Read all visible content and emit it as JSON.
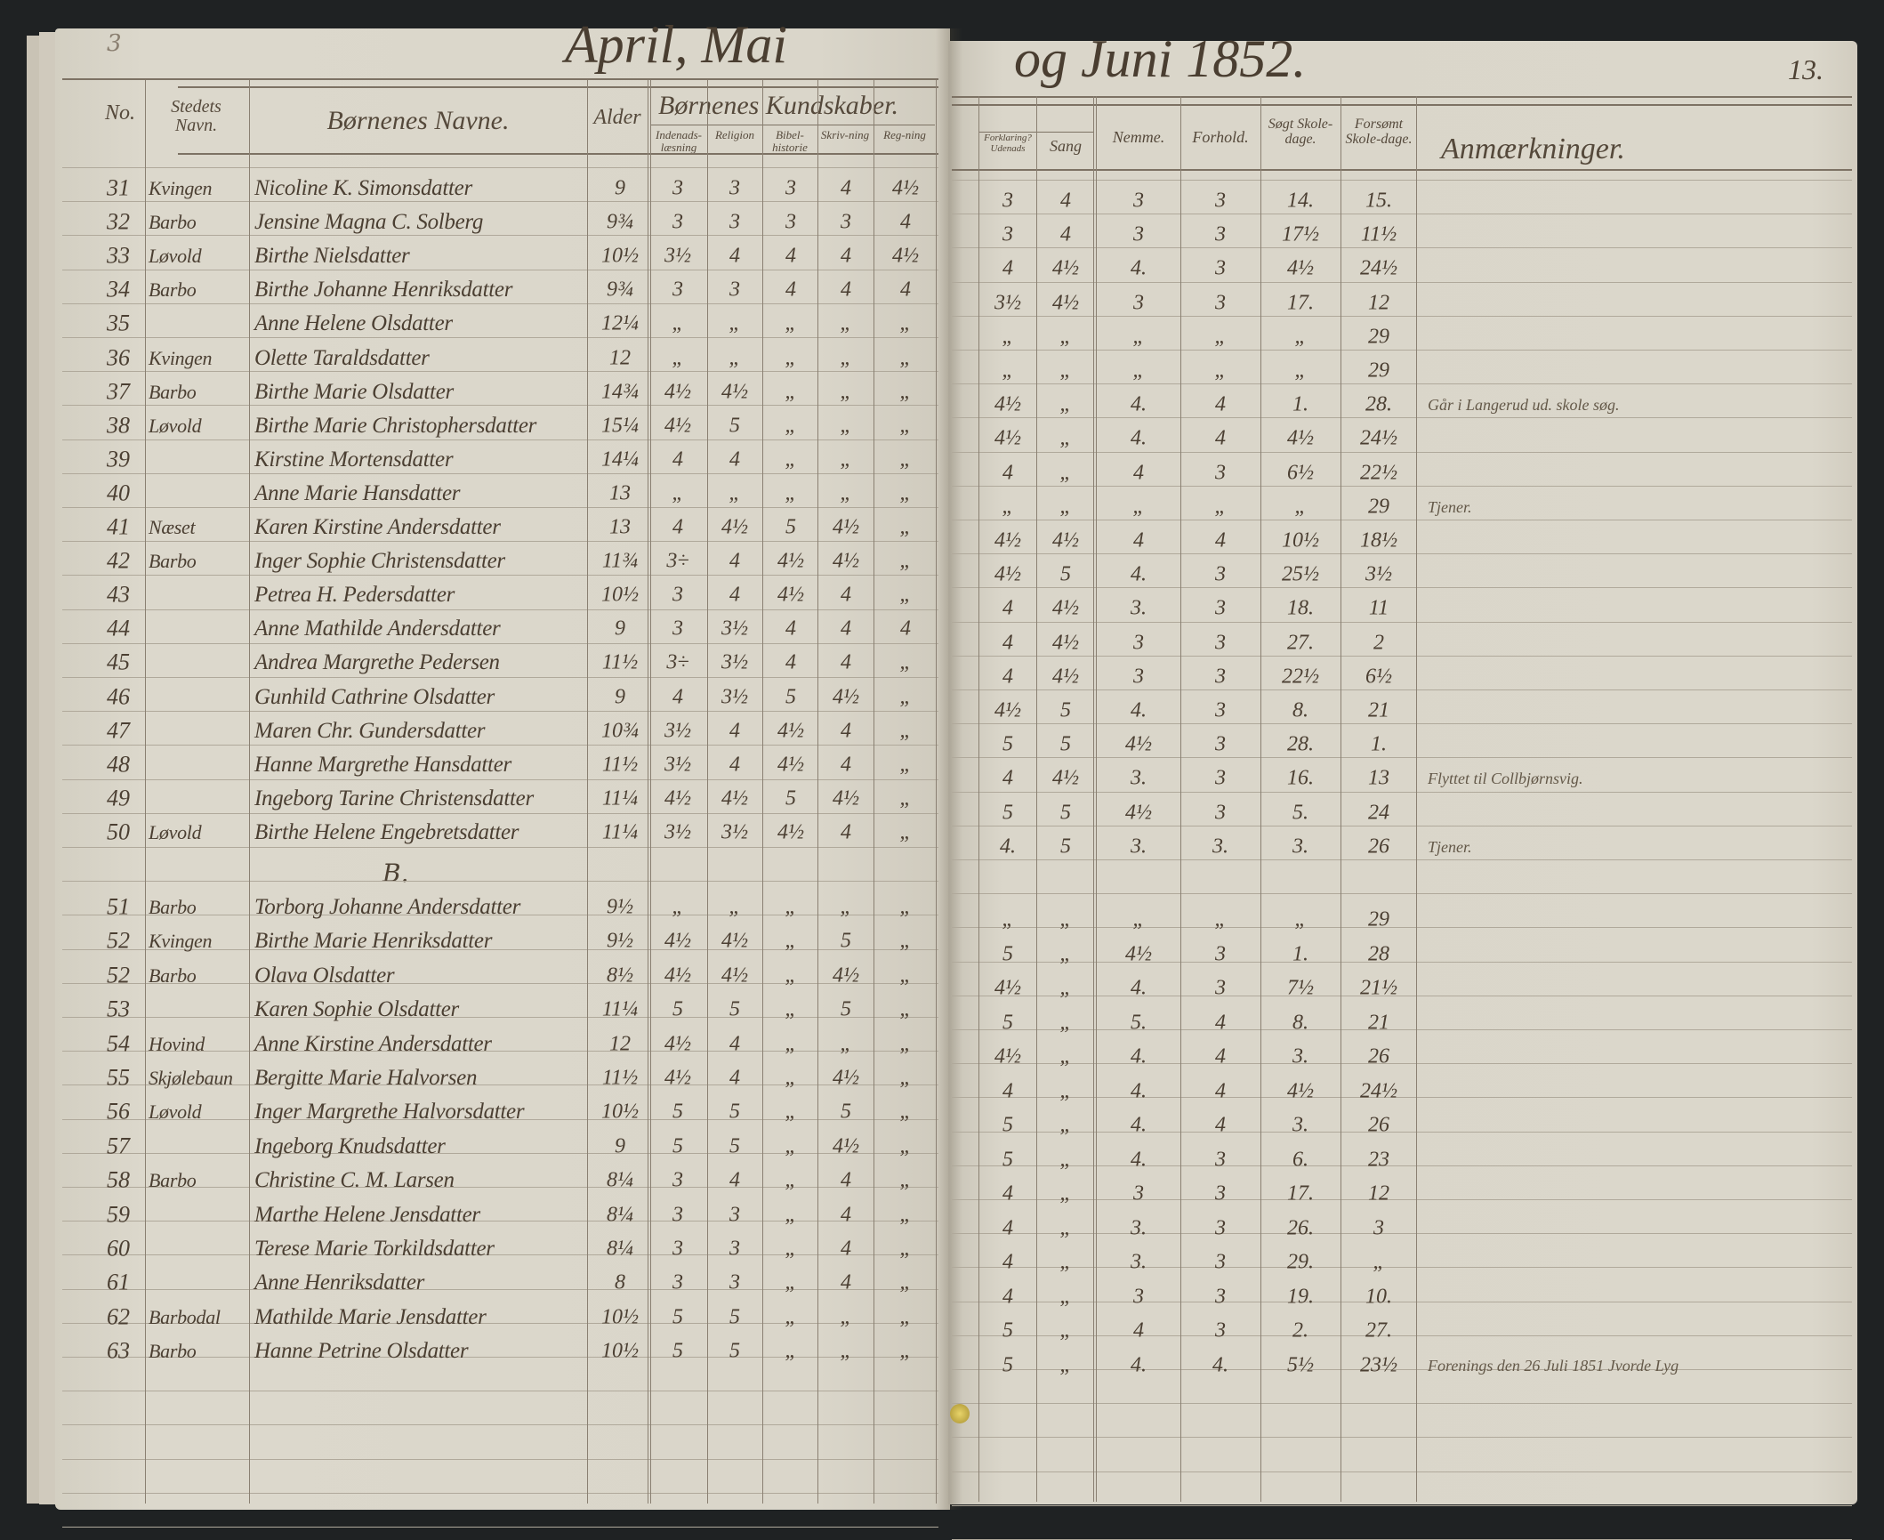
{
  "title_left": "April, Mai",
  "title_right": "og Juni 1852.",
  "page_number": "13.",
  "corner_mark": "3",
  "headers": {
    "no": "No.",
    "place": "Stedets Navn.",
    "name": "Børnenes Navne.",
    "age": "Alder",
    "knowledge": "Børnenes Kundskaber.",
    "k1": "Indenads-læsning",
    "k2": "Religion",
    "k3": "Bibel-historie",
    "k4": "Skriv-ning",
    "k5": "Reg-ning",
    "k6": "Forklaring? Udenads",
    "sang": "Sang",
    "nemme": "Nemme.",
    "forhold": "Forhold.",
    "sogt": "Søgt Skole-dage.",
    "forsomt": "Forsømt Skole-dage.",
    "remarks": "Anmærkninger."
  },
  "section_mark": "B.",
  "rows": [
    {
      "no": "31",
      "place": "Kvingen",
      "name": "Nicoline K. Simonsdatter",
      "age": "9",
      "k": [
        "3",
        "3",
        "3",
        "4",
        "4½"
      ],
      "r": [
        "3",
        "4",
        "3",
        "3",
        "14.",
        "15."
      ],
      "remark": ""
    },
    {
      "no": "32",
      "place": "Barbo",
      "name": "Jensine Magna C. Solberg",
      "age": "9¾",
      "k": [
        "3",
        "3",
        "3",
        "3",
        "4"
      ],
      "r": [
        "3",
        "4",
        "3",
        "3",
        "17½",
        "11½"
      ],
      "remark": ""
    },
    {
      "no": "33",
      "place": "Løvold",
      "name": "Birthe Nielsdatter",
      "age": "10½",
      "k": [
        "3½",
        "4",
        "4",
        "4",
        "4½"
      ],
      "r": [
        "4",
        "4½",
        "4.",
        "3",
        "4½",
        "24½"
      ],
      "remark": ""
    },
    {
      "no": "34",
      "place": "Barbo",
      "name": "Birthe Johanne Henriksdatter",
      "age": "9¾",
      "k": [
        "3",
        "3",
        "4",
        "4",
        "4"
      ],
      "r": [
        "3½",
        "4½",
        "3",
        "3",
        "17.",
        "12"
      ],
      "remark": ""
    },
    {
      "no": "35",
      "place": "",
      "name": "Anne Helene Olsdatter",
      "age": "12¼",
      "k": [
        "„",
        "„",
        "„",
        "„",
        "„"
      ],
      "r": [
        "„",
        "„",
        "„",
        "„",
        "„",
        "29"
      ],
      "remark": ""
    },
    {
      "no": "36",
      "place": "Kvingen",
      "name": "Olette Taraldsdatter",
      "age": "12",
      "k": [
        "„",
        "„",
        "„",
        "„",
        "„"
      ],
      "r": [
        "„",
        "„",
        "„",
        "„",
        "„",
        "29"
      ],
      "remark": ""
    },
    {
      "no": "37",
      "place": "Barbo",
      "name": "Birthe Marie Olsdatter",
      "age": "14¾",
      "k": [
        "4½",
        "4½",
        "„",
        "„",
        "„"
      ],
      "r": [
        "4½",
        "„",
        "4.",
        "4",
        "1.",
        "28."
      ],
      "remark": "Går i Langerud ud. skole søg."
    },
    {
      "no": "38",
      "place": "Løvold",
      "name": "Birthe Marie Christophersdatter",
      "age": "15¼",
      "k": [
        "4½",
        "5",
        "„",
        "„",
        "„"
      ],
      "r": [
        "4½",
        "„",
        "4.",
        "4",
        "4½",
        "24½"
      ],
      "remark": ""
    },
    {
      "no": "39",
      "place": "",
      "name": "Kirstine Mortensdatter",
      "age": "14¼",
      "k": [
        "4",
        "4",
        "„",
        "„",
        "„"
      ],
      "r": [
        "4",
        "„",
        "4",
        "3",
        "6½",
        "22½"
      ],
      "remark": ""
    },
    {
      "no": "40",
      "place": "",
      "name": "Anne Marie Hansdatter",
      "age": "13",
      "k": [
        "„",
        "„",
        "„",
        "„",
        "„"
      ],
      "r": [
        "„",
        "„",
        "„",
        "„",
        "„",
        "29"
      ],
      "remark": "Tjener."
    },
    {
      "no": "41",
      "place": "Næset",
      "name": "Karen Kirstine Andersdatter",
      "age": "13",
      "k": [
        "4",
        "4½",
        "5",
        "4½",
        "„"
      ],
      "r": [
        "4½",
        "4½",
        "4",
        "4",
        "10½",
        "18½"
      ],
      "remark": ""
    },
    {
      "no": "42",
      "place": "Barbo",
      "name": "Inger Sophie Christensdatter",
      "age": "11¾",
      "k": [
        "3÷",
        "4",
        "4½",
        "4½",
        "„"
      ],
      "r": [
        "4½",
        "5",
        "4.",
        "3",
        "25½",
        "3½"
      ],
      "remark": ""
    },
    {
      "no": "43",
      "place": "",
      "name": "Petrea H. Pedersdatter",
      "age": "10½",
      "k": [
        "3",
        "4",
        "4½",
        "4",
        "„"
      ],
      "r": [
        "4",
        "4½",
        "3.",
        "3",
        "18.",
        "11"
      ],
      "remark": ""
    },
    {
      "no": "44",
      "place": "",
      "name": "Anne Mathilde Andersdatter",
      "age": "9",
      "k": [
        "3",
        "3½",
        "4",
        "4",
        "4"
      ],
      "r": [
        "4",
        "4½",
        "3",
        "3",
        "27.",
        "2"
      ],
      "remark": ""
    },
    {
      "no": "45",
      "place": "",
      "name": "Andrea Margrethe Pedersen",
      "age": "11½",
      "k": [
        "3÷",
        "3½",
        "4",
        "4",
        "„"
      ],
      "r": [
        "4",
        "4½",
        "3",
        "3",
        "22½",
        "6½"
      ],
      "remark": ""
    },
    {
      "no": "46",
      "place": "",
      "name": "Gunhild Cathrine Olsdatter",
      "age": "9",
      "k": [
        "4",
        "3½",
        "5",
        "4½",
        "„"
      ],
      "r": [
        "4½",
        "5",
        "4.",
        "3",
        "8.",
        "21"
      ],
      "remark": ""
    },
    {
      "no": "47",
      "place": "",
      "name": "Maren Chr. Gundersdatter",
      "age": "10¾",
      "k": [
        "3½",
        "4",
        "4½",
        "4",
        "„"
      ],
      "r": [
        "5",
        "5",
        "4½",
        "3",
        "28.",
        "1."
      ],
      "remark": ""
    },
    {
      "no": "48",
      "place": "",
      "name": "Hanne Margrethe Hansdatter",
      "age": "11½",
      "k": [
        "3½",
        "4",
        "4½",
        "4",
        "„"
      ],
      "r": [
        "4",
        "4½",
        "3.",
        "3",
        "16.",
        "13"
      ],
      "remark": "Flyttet til Collbjørnsvig."
    },
    {
      "no": "49",
      "place": "",
      "name": "Ingeborg Tarine Christensdatter",
      "age": "11¼",
      "k": [
        "4½",
        "4½",
        "5",
        "4½",
        "„"
      ],
      "r": [
        "5",
        "5",
        "4½",
        "3",
        "5.",
        "24"
      ],
      "remark": ""
    },
    {
      "no": "50",
      "place": "Løvold",
      "name": "Birthe Helene Engebretsdatter",
      "age": "11¼",
      "k": [
        "3½",
        "3½",
        "4½",
        "4",
        "„"
      ],
      "r": [
        "4.",
        "5",
        "3.",
        "3.",
        "3.",
        "26"
      ],
      "remark": "Tjener."
    }
  ],
  "rows_b": [
    {
      "no": "51",
      "place": "Barbo",
      "name": "Torborg Johanne Andersdatter",
      "age": "9½",
      "k": [
        "„",
        "„",
        "„",
        "„",
        "„"
      ],
      "r": [
        "„",
        "„",
        "„",
        "„",
        "„",
        "29"
      ],
      "remark": ""
    },
    {
      "no": "52",
      "place": "Kvingen",
      "name": "Birthe Marie Henriksdatter",
      "age": "9½",
      "k": [
        "4½",
        "4½",
        "„",
        "5",
        "„"
      ],
      "r": [
        "5",
        "„",
        "4½",
        "3",
        "1.",
        "28"
      ],
      "remark": ""
    },
    {
      "no": "52",
      "place": "Barbo",
      "name": "Olava Olsdatter",
      "age": "8½",
      "k": [
        "4½",
        "4½",
        "„",
        "4½",
        "„"
      ],
      "r": [
        "4½",
        "„",
        "4.",
        "3",
        "7½",
        "21½"
      ],
      "remark": ""
    },
    {
      "no": "53",
      "place": "",
      "name": "Karen Sophie Olsdatter",
      "age": "11¼",
      "k": [
        "5",
        "5",
        "„",
        "5",
        "„"
      ],
      "r": [
        "5",
        "„",
        "5.",
        "4",
        "8.",
        "21"
      ],
      "remark": ""
    },
    {
      "no": "54",
      "place": "Hovind",
      "name": "Anne Kirstine Andersdatter",
      "age": "12",
      "k": [
        "4½",
        "4",
        "„",
        "„",
        "„"
      ],
      "r": [
        "4½",
        "„",
        "4.",
        "4",
        "3.",
        "26"
      ],
      "remark": ""
    },
    {
      "no": "55",
      "place": "Skjølebaun",
      "name": "Bergitte Marie Halvorsen",
      "age": "11½",
      "k": [
        "4½",
        "4",
        "„",
        "4½",
        "„"
      ],
      "r": [
        "4",
        "„",
        "4.",
        "4",
        "4½",
        "24½"
      ],
      "remark": ""
    },
    {
      "no": "56",
      "place": "Løvold",
      "name": "Inger Margrethe Halvorsdatter",
      "age": "10½",
      "k": [
        "5",
        "5",
        "„",
        "5",
        "„"
      ],
      "r": [
        "5",
        "„",
        "4.",
        "4",
        "3.",
        "26"
      ],
      "remark": ""
    },
    {
      "no": "57",
      "place": "",
      "name": "Ingeborg Knudsdatter",
      "age": "9",
      "k": [
        "5",
        "5",
        "„",
        "4½",
        "„"
      ],
      "r": [
        "5",
        "„",
        "4.",
        "3",
        "6.",
        "23"
      ],
      "remark": ""
    },
    {
      "no": "58",
      "place": "Barbo",
      "name": "Christine C. M. Larsen",
      "age": "8¼",
      "k": [
        "3",
        "4",
        "„",
        "4",
        "„"
      ],
      "r": [
        "4",
        "„",
        "3",
        "3",
        "17.",
        "12"
      ],
      "remark": ""
    },
    {
      "no": "59",
      "place": "",
      "name": "Marthe Helene Jensdatter",
      "age": "8¼",
      "k": [
        "3",
        "3",
        "„",
        "4",
        "„"
      ],
      "r": [
        "4",
        "„",
        "3.",
        "3",
        "26.",
        "3"
      ],
      "remark": ""
    },
    {
      "no": "60",
      "place": "",
      "name": "Terese Marie Torkildsdatter",
      "age": "8¼",
      "k": [
        "3",
        "3",
        "„",
        "4",
        "„"
      ],
      "r": [
        "4",
        "„",
        "3.",
        "3",
        "29.",
        "„"
      ],
      "remark": ""
    },
    {
      "no": "61",
      "place": "",
      "name": "Anne Henriksdatter",
      "age": "8",
      "k": [
        "3",
        "3",
        "„",
        "4",
        "„"
      ],
      "r": [
        "4",
        "„",
        "3",
        "3",
        "19.",
        "10."
      ],
      "remark": ""
    },
    {
      "no": "62",
      "place": "Barbodal",
      "name": "Mathilde Marie Jensdatter",
      "age": "10½",
      "k": [
        "5",
        "5",
        "„",
        "„",
        "„"
      ],
      "r": [
        "5",
        "„",
        "4",
        "3",
        "2.",
        "27."
      ],
      "remark": ""
    },
    {
      "no": "63",
      "place": "Barbo",
      "name": "Hanne Petrine Olsdatter",
      "age": "10½",
      "k": [
        "5",
        "5",
        "„",
        "„",
        "„"
      ],
      "r": [
        "5",
        "„",
        "4.",
        "4.",
        "5½",
        "23½"
      ],
      "remark": "Forenings den 26 Juli 1851 Jvorde Lyg"
    }
  ],
  "colors": {
    "background": "#1f2223",
    "paper": "#d9d5c9",
    "ink": "#4e4234"
  }
}
